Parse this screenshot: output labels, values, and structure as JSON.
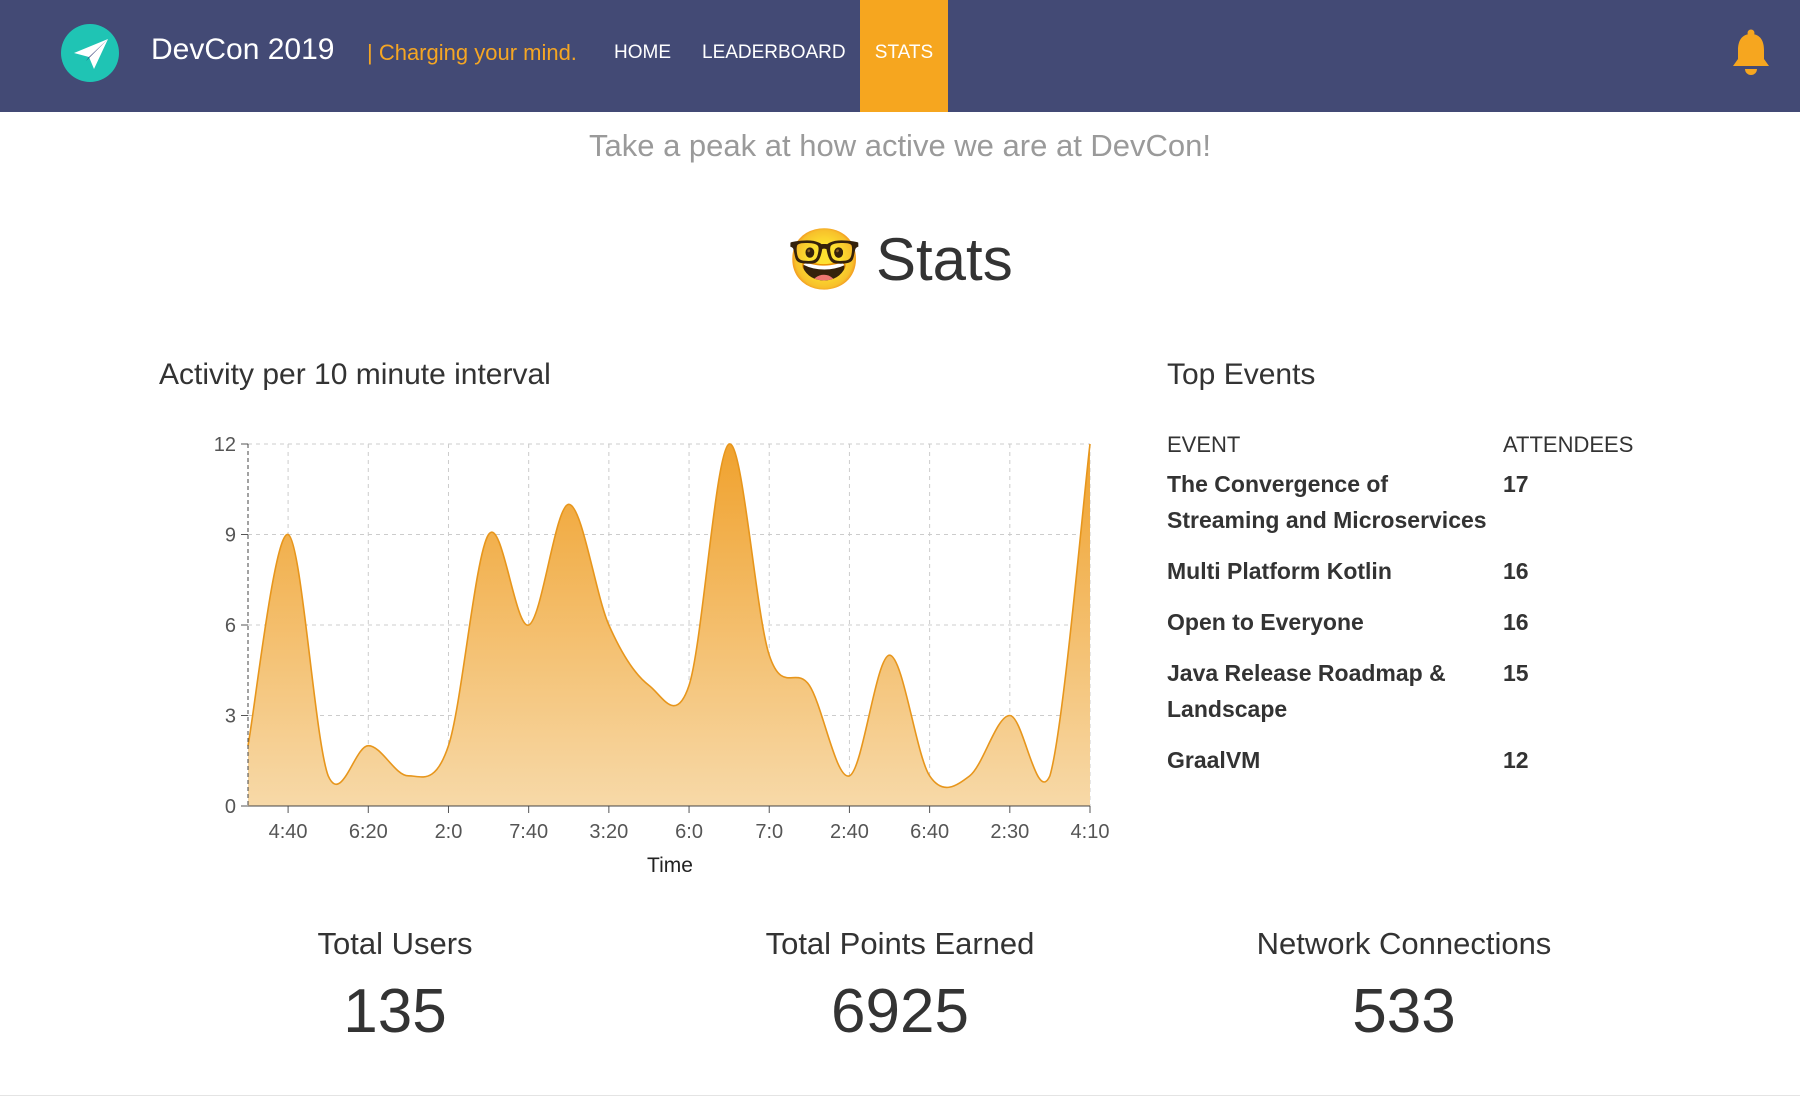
{
  "header": {
    "brand": "DevCon 2019",
    "tagline": "| Charging your mind.",
    "nav": [
      "HOME",
      "LEADERBOARD",
      "STATS"
    ],
    "active_nav": "STATS",
    "accent_color": "#f6a61f",
    "bar_color": "#434a75",
    "logo_color": "#1fc4b4",
    "logo_icon": "paper-plane-icon",
    "notification_icon": "bell-icon"
  },
  "subtitle": "Take a peak at how active we are at DevCon!",
  "heading": {
    "emoji": "🤓",
    "text": "Stats"
  },
  "chart_title": "Activity per 10 minute interval",
  "chart_data": {
    "type": "area",
    "xlabel": "Time",
    "ylabel": "",
    "x_ticks": [
      "4:40",
      "6:20",
      "2:0",
      "7:40",
      "3:20",
      "6:0",
      "7:0",
      "2:40",
      "6:40",
      "2:30",
      "4:10"
    ],
    "y_ticks": [
      0,
      3,
      6,
      9,
      12
    ],
    "ylim": [
      0,
      12
    ],
    "values": [
      2,
      9,
      1,
      2,
      1,
      2,
      9,
      6,
      10,
      6,
      4,
      4,
      12,
      5,
      4,
      1,
      5,
      1,
      1,
      3,
      1,
      12
    ],
    "grid": true,
    "color": "#f0a22e"
  },
  "top_events": {
    "title": "Top Events",
    "col_event": "EVENT",
    "col_attendees": "ATTENDEES",
    "rows": [
      {
        "event": "The Convergence of Streaming and Microservices",
        "attendees": "17"
      },
      {
        "event": "Multi Platform Kotlin",
        "attendees": "16"
      },
      {
        "event": "Open to Everyone",
        "attendees": "16"
      },
      {
        "event": "Java Release Roadmap & Landscape",
        "attendees": "15"
      },
      {
        "event": "GraalVM",
        "attendees": "12"
      }
    ]
  },
  "stats": [
    {
      "label": "Total Users",
      "value": "135"
    },
    {
      "label": "Total Points Earned",
      "value": "6925"
    },
    {
      "label": "Network Connections",
      "value": "533"
    }
  ]
}
